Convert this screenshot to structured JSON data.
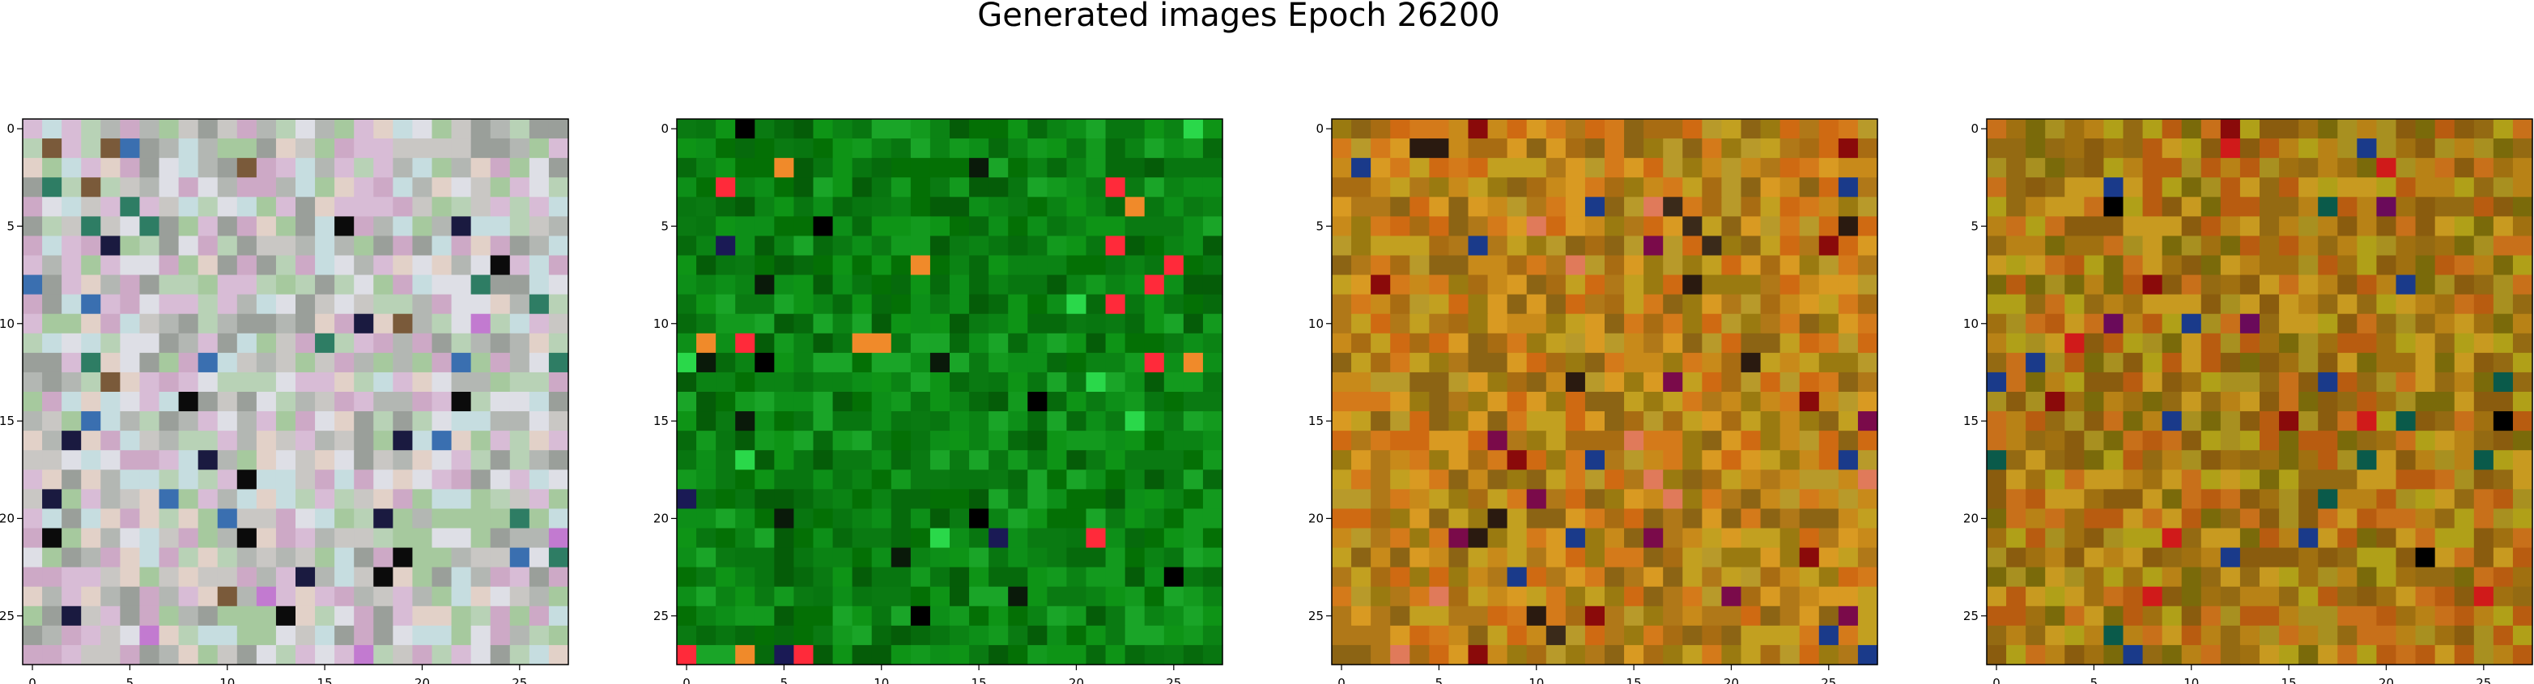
{
  "figure": {
    "title": "Generated images Epoch 26200"
  },
  "chart_data": [
    {
      "type": "heatmap",
      "rows": 28,
      "cols": 28,
      "x_ticks": [
        0,
        5,
        10,
        15,
        20,
        25
      ],
      "y_ticks": [
        0,
        5,
        10,
        15,
        20,
        25
      ],
      "xlim": [
        -0.5,
        27.5
      ],
      "ylim": [
        27.5,
        -0.5
      ],
      "palette": {
        "base": [
          "#c9c7c4",
          "#b8d2b6",
          "#d8bcd6",
          "#c6dde0",
          "#b3b7b3",
          "#e2d1c8",
          "#a6c99e",
          "#cda9c6",
          "#dedfe6",
          "#9a9f9a"
        ],
        "accents": [
          "#1a1a40",
          "#0b0b0b",
          "#2e7d64",
          "#7a5a3a",
          "#3a6fb0",
          "#c27ad0"
        ]
      }
    },
    {
      "type": "heatmap",
      "rows": 28,
      "cols": 28,
      "x_ticks": [
        0,
        5,
        10,
        15,
        20,
        25
      ],
      "y_ticks": [
        0,
        5,
        10,
        15,
        20,
        25
      ],
      "xlim": [
        -0.5,
        27.5
      ],
      "ylim": [
        27.5,
        -0.5
      ],
      "palette": {
        "base": [
          "#0a7a12",
          "#0d8f18",
          "#066a0c",
          "#139a1e",
          "#047005",
          "#0b8314",
          "#1aa528",
          "#055c08",
          "#0e9416",
          "#087610"
        ],
        "accents": [
          "#000000",
          "#0a1a0a",
          "#f08a2a",
          "#ff2a3a",
          "#2ad84a",
          "#1a1a55"
        ]
      }
    },
    {
      "type": "heatmap",
      "rows": 28,
      "cols": 28,
      "x_ticks": [
        0,
        5,
        10,
        15,
        20,
        25
      ],
      "y_ticks": [
        0,
        5,
        10,
        15,
        20,
        25
      ],
      "xlim": [
        -0.5,
        27.5
      ],
      "ylim": [
        27.5,
        -0.5
      ],
      "palette": {
        "base": [
          "#c88a1a",
          "#b07818",
          "#d99a22",
          "#a86c12",
          "#c2a020",
          "#8c6414",
          "#d47a1a",
          "#b89a2a",
          "#9a7a10",
          "#cf6a12"
        ],
        "accents": [
          "#8a0a0a",
          "#2a1a10",
          "#1a3a8a",
          "#7a0a4a",
          "#e07a5a",
          "#3a2a1a"
        ]
      }
    },
    {
      "type": "heatmap",
      "rows": 28,
      "cols": 28,
      "x_ticks": [
        0,
        5,
        10,
        15,
        20,
        25
      ],
      "y_ticks": [
        0,
        5,
        10,
        15,
        20,
        25
      ],
      "xlim": [
        -0.5,
        27.5
      ],
      "ylim": [
        27.5,
        -0.5
      ],
      "palette": {
        "base": [
          "#b88216",
          "#a07010",
          "#c89a20",
          "#946a12",
          "#b0a018",
          "#8a5c0e",
          "#c8701a",
          "#a89020",
          "#7a6a0a",
          "#b85c10"
        ],
        "accents": [
          "#8a0a0a",
          "#000000",
          "#1a3a8a",
          "#6a0a5a",
          "#0a5a4a",
          "#d01a1a"
        ]
      }
    }
  ]
}
